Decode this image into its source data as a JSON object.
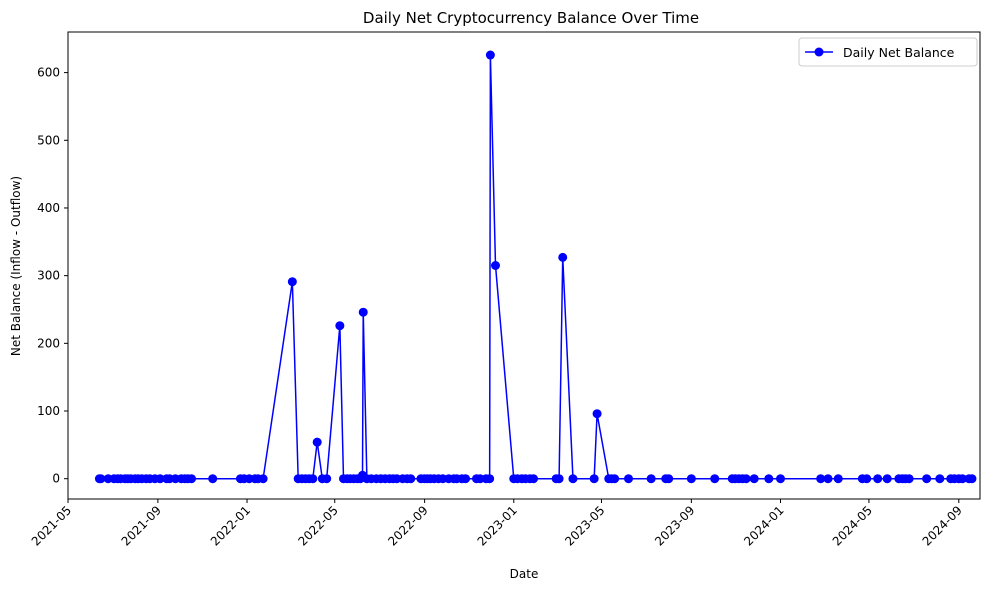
{
  "chart_data": {
    "type": "line",
    "title": "Daily Net Cryptocurrency Balance Over Time",
    "xlabel": "Date",
    "ylabel": "Net Balance (Inflow - Outflow)",
    "x_range": [
      "2021-05-01",
      "2024-09-30"
    ],
    "ylim": [
      -30,
      660
    ],
    "x_ticks": [
      "2021-05-01",
      "2021-09-01",
      "2022-01-01",
      "2022-05-01",
      "2022-09-01",
      "2023-01-01",
      "2023-05-01",
      "2023-09-01",
      "2024-01-01",
      "2024-05-01",
      "2024-09-01"
    ],
    "x_tick_labels": [
      "2021-05",
      "2021-09",
      "2022-01",
      "2022-05",
      "2022-09",
      "2023-01",
      "2023-05",
      "2023-09",
      "2024-01",
      "2024-05",
      "2024-09"
    ],
    "y_ticks": [
      0,
      100,
      200,
      300,
      400,
      500,
      600
    ],
    "grid": false,
    "legend_position": "top-right",
    "series": [
      {
        "name": "Daily Net Balance",
        "color": "#0000ff",
        "marker": "circle",
        "points": [
          [
            "2021-06-13",
            0
          ],
          [
            "2021-06-15",
            0
          ],
          [
            "2021-06-25",
            0
          ],
          [
            "2021-07-03",
            0
          ],
          [
            "2021-07-08",
            0
          ],
          [
            "2021-07-12",
            0
          ],
          [
            "2021-07-18",
            0
          ],
          [
            "2021-07-22",
            0
          ],
          [
            "2021-07-26",
            0
          ],
          [
            "2021-08-01",
            0
          ],
          [
            "2021-08-05",
            0
          ],
          [
            "2021-08-10",
            0
          ],
          [
            "2021-08-16",
            0
          ],
          [
            "2021-08-21",
            0
          ],
          [
            "2021-08-28",
            0
          ],
          [
            "2021-09-04",
            0
          ],
          [
            "2021-09-13",
            0
          ],
          [
            "2021-09-17",
            0
          ],
          [
            "2021-09-25",
            0
          ],
          [
            "2021-10-03",
            0
          ],
          [
            "2021-10-08",
            0
          ],
          [
            "2021-10-12",
            0
          ],
          [
            "2021-10-17",
            0
          ],
          [
            "2021-11-15",
            0
          ],
          [
            "2021-12-23",
            0
          ],
          [
            "2021-12-28",
            0
          ],
          [
            "2022-01-04",
            0
          ],
          [
            "2022-01-12",
            0
          ],
          [
            "2022-01-16",
            0
          ],
          [
            "2022-01-23",
            0
          ],
          [
            "2022-03-04",
            291
          ],
          [
            "2022-03-12",
            0
          ],
          [
            "2022-03-17",
            0
          ],
          [
            "2022-03-22",
            0
          ],
          [
            "2022-03-27",
            0
          ],
          [
            "2022-04-01",
            0
          ],
          [
            "2022-04-07",
            54
          ],
          [
            "2022-04-14",
            0
          ],
          [
            "2022-04-20",
            0
          ],
          [
            "2022-05-08",
            226
          ],
          [
            "2022-05-13",
            0
          ],
          [
            "2022-05-18",
            0
          ],
          [
            "2022-05-22",
            0
          ],
          [
            "2022-05-27",
            0
          ],
          [
            "2022-06-01",
            0
          ],
          [
            "2022-06-05",
            0
          ],
          [
            "2022-06-08",
            5
          ],
          [
            "2022-06-09",
            246
          ],
          [
            "2022-06-14",
            0
          ],
          [
            "2022-06-20",
            0
          ],
          [
            "2022-06-27",
            0
          ],
          [
            "2022-07-03",
            0
          ],
          [
            "2022-07-09",
            0
          ],
          [
            "2022-07-15",
            0
          ],
          [
            "2022-07-20",
            0
          ],
          [
            "2022-07-25",
            0
          ],
          [
            "2022-08-02",
            0
          ],
          [
            "2022-08-08",
            0
          ],
          [
            "2022-08-13",
            0
          ],
          [
            "2022-08-27",
            0
          ],
          [
            "2022-09-01",
            0
          ],
          [
            "2022-09-05",
            0
          ],
          [
            "2022-09-09",
            0
          ],
          [
            "2022-09-14",
            0
          ],
          [
            "2022-09-20",
            0
          ],
          [
            "2022-09-26",
            0
          ],
          [
            "2022-10-04",
            0
          ],
          [
            "2022-10-11",
            0
          ],
          [
            "2022-10-15",
            0
          ],
          [
            "2022-10-22",
            0
          ],
          [
            "2022-10-27",
            0
          ],
          [
            "2022-11-11",
            0
          ],
          [
            "2022-11-16",
            0
          ],
          [
            "2022-11-24",
            0
          ],
          [
            "2022-11-29",
            0
          ],
          [
            "2022-11-30",
            626
          ],
          [
            "2022-12-07",
            315
          ],
          [
            "2023-01-01",
            0
          ],
          [
            "2023-01-06",
            0
          ],
          [
            "2023-01-12",
            0
          ],
          [
            "2023-01-17",
            0
          ],
          [
            "2023-01-23",
            0
          ],
          [
            "2023-01-28",
            0
          ],
          [
            "2023-02-28",
            0
          ],
          [
            "2023-03-04",
            0
          ],
          [
            "2023-03-09",
            327
          ],
          [
            "2023-03-23",
            0
          ],
          [
            "2023-04-21",
            0
          ],
          [
            "2023-04-25",
            96
          ],
          [
            "2023-05-11",
            0
          ],
          [
            "2023-05-15",
            0
          ],
          [
            "2023-05-19",
            0
          ],
          [
            "2023-06-07",
            0
          ],
          [
            "2023-07-08",
            0
          ],
          [
            "2023-07-28",
            0
          ],
          [
            "2023-08-01",
            0
          ],
          [
            "2023-09-01",
            0
          ],
          [
            "2023-10-03",
            0
          ],
          [
            "2023-10-27",
            0
          ],
          [
            "2023-10-31",
            0
          ],
          [
            "2023-11-05",
            0
          ],
          [
            "2023-11-10",
            0
          ],
          [
            "2023-11-15",
            0
          ],
          [
            "2023-11-26",
            0
          ],
          [
            "2023-12-16",
            0
          ],
          [
            "2024-01-01",
            0
          ],
          [
            "2024-02-25",
            0
          ],
          [
            "2024-03-06",
            0
          ],
          [
            "2024-03-20",
            0
          ],
          [
            "2024-04-22",
            0
          ],
          [
            "2024-04-28",
            0
          ],
          [
            "2024-05-13",
            0
          ],
          [
            "2024-05-26",
            0
          ],
          [
            "2024-06-11",
            0
          ],
          [
            "2024-06-16",
            0
          ],
          [
            "2024-06-20",
            0
          ],
          [
            "2024-06-25",
            0
          ],
          [
            "2024-07-19",
            0
          ],
          [
            "2024-08-06",
            0
          ],
          [
            "2024-08-21",
            0
          ],
          [
            "2024-08-26",
            0
          ],
          [
            "2024-09-01",
            0
          ],
          [
            "2024-09-06",
            0
          ],
          [
            "2024-09-15",
            0
          ],
          [
            "2024-09-19",
            0
          ]
        ]
      }
    ]
  }
}
